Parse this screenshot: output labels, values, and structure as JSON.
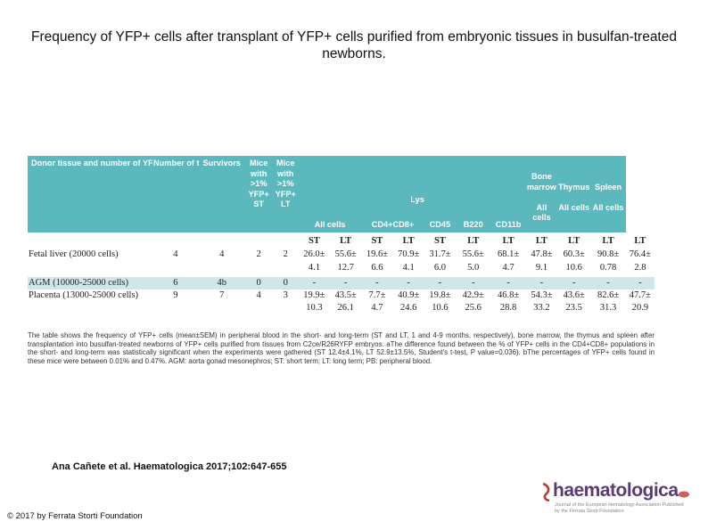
{
  "title": "Frequency of YFP+ cells after transplant of YFP+ cells purified from embryonic tissues in busulfan-treated newborns.",
  "header": {
    "donor": "Donor tissue and number of YFP+ cells transplanted",
    "transplants": "Number of transplants",
    "survivors": "Survivors",
    "mice_st": "Mice with >1% YFP+ ST",
    "mice_lt": "Mice with >1% YFP+ LT",
    "lysated_pb": "Lysated PB",
    "bone_marrow": "Bone marrow",
    "thymus": "Thymus",
    "spleen": "Spleen",
    "all_cells": "All cells",
    "cd4cd8": "CD4+CD8+",
    "cd45": "CD45",
    "b220": "B220",
    "cd11b": "CD11b",
    "bm_all": "All cells",
    "thy_all": "All cells",
    "sp_all": "All cells"
  },
  "subheader": [
    "ST",
    "LT",
    "ST",
    "LT",
    "ST",
    "LT",
    "LT",
    "LT",
    "LT",
    "LT",
    "LT"
  ],
  "rows": [
    {
      "name": "Fetal liver (20000 cells)",
      "transplants": "4",
      "survivors": "4",
      "st": "2",
      "lt": "2",
      "means": [
        "26.0±",
        "55.6±",
        "19.6±",
        "70.9±",
        "31.7±",
        "55.6±",
        "68.1±",
        "47.8±",
        "60.3±",
        "90.8±",
        "76.4±"
      ],
      "sems": [
        "4.1",
        "12.7",
        "6.6",
        "4.1",
        "6.0",
        "5.0",
        "4.7",
        "9.1",
        "10.6",
        "0.78",
        "2.8"
      ]
    },
    {
      "name": "AGM (10000-25000 cells)",
      "transplants": "6",
      "survivors": "4b",
      "st": "0",
      "lt": "0",
      "means": [
        "-",
        "-",
        "-",
        "-",
        "-",
        "-",
        "-",
        "-",
        "-",
        "-",
        "-"
      ],
      "sems": []
    },
    {
      "name": "Placenta (13000-25000 cells)",
      "transplants": "9",
      "survivors": "7",
      "st": "4",
      "lt": "3",
      "means": [
        "19.9±",
        "43.5±",
        "7.7±",
        "40.9±",
        "19.8±",
        "42.9±",
        "46.8±",
        "54.3±",
        "43.6±",
        "82.6±",
        "47.7±"
      ],
      "sems": [
        "10.3",
        "26.1",
        "4.7",
        "24.6",
        "10.6",
        "25.6",
        "28.8",
        "33.2",
        "23.5",
        "31.3",
        "20.9"
      ]
    }
  ],
  "caption": "The table shows the frequency of YFP+ cells (mean±SEM) in peripheral blood in the short- and long-term (ST and LT, 1 and 4-9 months, respectively), bone marrow, the thymus and spleen after transplantation into busulfan-treated newborns of YFP+ cells purified from tissues from C2ce/R26RYFP embryos. aThe difference found between the % of YFP+ cells in the CD4+CD8+ populations in the short- and long-term was statistically significant when the experiments were gathered (ST 12.4±4.1%, LT 52.9±13.5%, Student's t-test, P value=0.036). bThe percentages of YFP+ cells found in these mice were between 0.01% and 0.47%. AGM: aorta gonad mesonephros; ST: short term; LT: long term; PB: peripheral blood.",
  "citation": "Ana Cañete et al. Haematologica 2017;102:647-655",
  "copyright": "© 2017 by Ferrata Storti Foundation",
  "logo": {
    "name": "haematologica",
    "subtitle": "Journal of the European Hematology Association Published by the Ferrata Storti Foundation"
  },
  "colors": {
    "header_bg": "#5bb8bd",
    "band_bg": "#cfe7e8",
    "logo": "#5a3b73"
  }
}
